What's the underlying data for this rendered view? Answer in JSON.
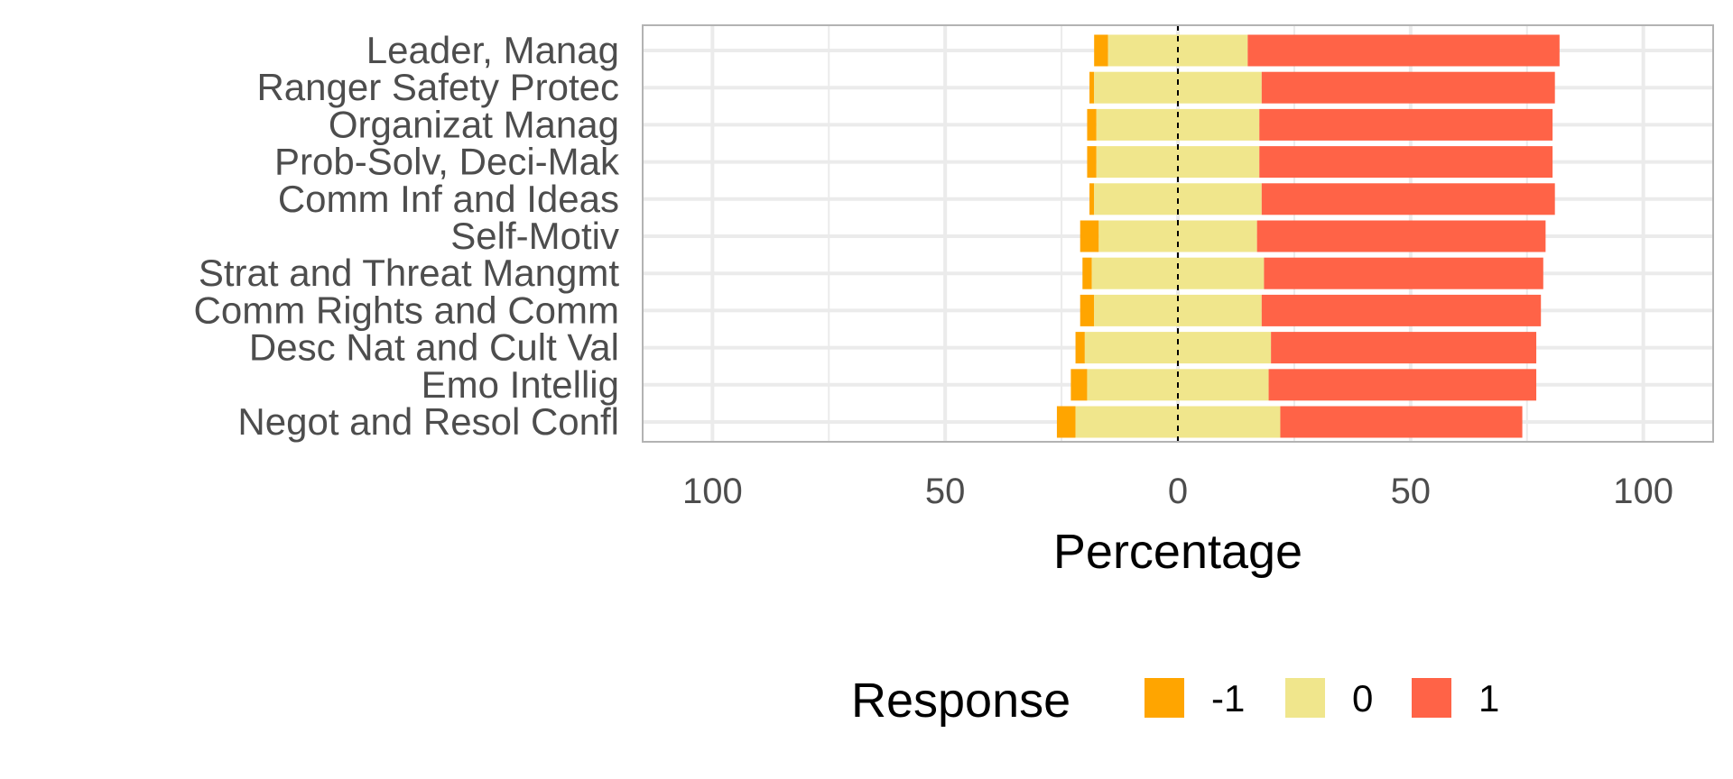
{
  "chart_data": {
    "type": "bar",
    "orientation": "horizontal",
    "stacked": "diverging",
    "categories": [
      "Leader, Manag",
      "Ranger Safety Protec",
      "Organizat Manag",
      "Prob-Solv, Deci-Mak",
      "Comm Inf and Ideas",
      "Self-Motiv",
      "Strat and Threat Mangmt",
      "Comm Rights and Comm",
      "Desc Nat and Cult Val",
      "Emo Intellig",
      "Negot and Resol Confl"
    ],
    "series": [
      {
        "name": "-1",
        "color": "#FFA500",
        "values": [
          3,
          1,
          2,
          2,
          1,
          4,
          2,
          3,
          2,
          3.5,
          4
        ]
      },
      {
        "name": "0",
        "color": "#F0E68C",
        "values": [
          30,
          36,
          35,
          35,
          36,
          34,
          37,
          36,
          40,
          39,
          44
        ]
      },
      {
        "name": "1",
        "color": "#FF6347",
        "values": [
          67,
          63,
          63,
          63,
          63,
          62,
          60,
          60,
          57,
          57.5,
          52
        ]
      }
    ],
    "xlabel": "Percentage",
    "ylabel": "",
    "xlim": [
      -115,
      115
    ],
    "xticks": [
      -100,
      -50,
      0,
      50,
      100
    ],
    "xtick_labels": [
      "100",
      "50",
      "0",
      "50",
      "100"
    ],
    "grid": true,
    "legend_position": "bottom",
    "legend_title": "Response",
    "colors": {
      "panel_border": "#b3b3b3",
      "grid": "#ebebeb",
      "zero_line": "#000000",
      "tick_text": "#4d4d4d"
    }
  }
}
